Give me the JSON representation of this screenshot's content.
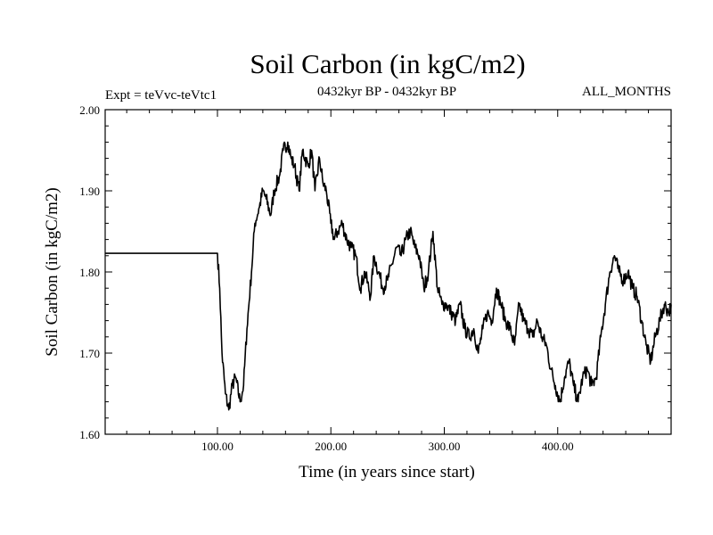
{
  "chart_data": {
    "type": "line",
    "title": "Soil Carbon (in kgC/m2)",
    "subtitle_left": "Expt = teVvc-teVtc1",
    "subtitle_center": "0432kyr BP - 0432kyr BP",
    "subtitle_right": "ALL_MONTHS",
    "xlabel": "Time (in years since start)",
    "ylabel": "Soil Carbon (in kgC/m2)",
    "xlim": [
      1,
      500
    ],
    "ylim": [
      1.6,
      2.0
    ],
    "x_ticks": [
      100,
      200,
      300,
      400
    ],
    "x_tick_labels": [
      "100.00",
      "200.00",
      "300.00",
      "400.00"
    ],
    "y_ticks": [
      1.6,
      1.7,
      1.8,
      1.9,
      2.0
    ],
    "y_tick_labels": [
      "1.60",
      "1.70",
      "1.80",
      "1.90",
      "2.00"
    ],
    "series": [
      {
        "name": "Soil Carbon",
        "color": "#000000",
        "x": [
          1,
          100,
          102,
          104,
          107,
          110,
          113,
          116,
          120,
          123,
          126,
          130,
          133,
          137,
          140,
          143,
          147,
          150,
          155,
          158,
          162,
          165,
          168,
          172,
          175,
          180,
          183,
          186,
          190,
          193,
          196,
          200,
          203,
          206,
          210,
          214,
          218,
          222,
          226,
          230,
          235,
          238,
          242,
          246,
          250,
          254,
          258,
          262,
          266,
          270,
          274,
          278,
          282,
          286,
          290,
          294,
          298,
          302,
          306,
          310,
          314,
          318,
          322,
          326,
          330,
          334,
          338,
          342,
          346,
          350,
          354,
          358,
          362,
          366,
          370,
          374,
          378,
          382,
          386,
          390,
          394,
          398,
          402,
          406,
          410,
          414,
          418,
          422,
          426,
          430,
          434,
          438,
          442,
          446,
          450,
          454,
          458,
          462,
          466,
          470,
          474,
          478,
          482,
          486,
          490,
          494,
          498,
          500
        ],
        "y": [
          1.823,
          1.823,
          1.78,
          1.7,
          1.65,
          1.63,
          1.66,
          1.67,
          1.64,
          1.66,
          1.73,
          1.8,
          1.86,
          1.88,
          1.9,
          1.89,
          1.87,
          1.9,
          1.92,
          1.95,
          1.96,
          1.94,
          1.93,
          1.9,
          1.95,
          1.93,
          1.95,
          1.9,
          1.94,
          1.91,
          1.9,
          1.86,
          1.84,
          1.85,
          1.86,
          1.84,
          1.83,
          1.82,
          1.78,
          1.8,
          1.77,
          1.82,
          1.8,
          1.78,
          1.79,
          1.81,
          1.83,
          1.82,
          1.84,
          1.85,
          1.83,
          1.82,
          1.78,
          1.8,
          1.85,
          1.78,
          1.76,
          1.76,
          1.75,
          1.74,
          1.76,
          1.73,
          1.72,
          1.73,
          1.7,
          1.73,
          1.75,
          1.74,
          1.78,
          1.76,
          1.74,
          1.73,
          1.71,
          1.76,
          1.74,
          1.73,
          1.72,
          1.74,
          1.72,
          1.71,
          1.68,
          1.66,
          1.64,
          1.67,
          1.69,
          1.66,
          1.64,
          1.67,
          1.68,
          1.66,
          1.67,
          1.72,
          1.76,
          1.8,
          1.82,
          1.8,
          1.79,
          1.8,
          1.78,
          1.77,
          1.74,
          1.71,
          1.69,
          1.72,
          1.74,
          1.76,
          1.75,
          1.76
        ]
      }
    ]
  }
}
